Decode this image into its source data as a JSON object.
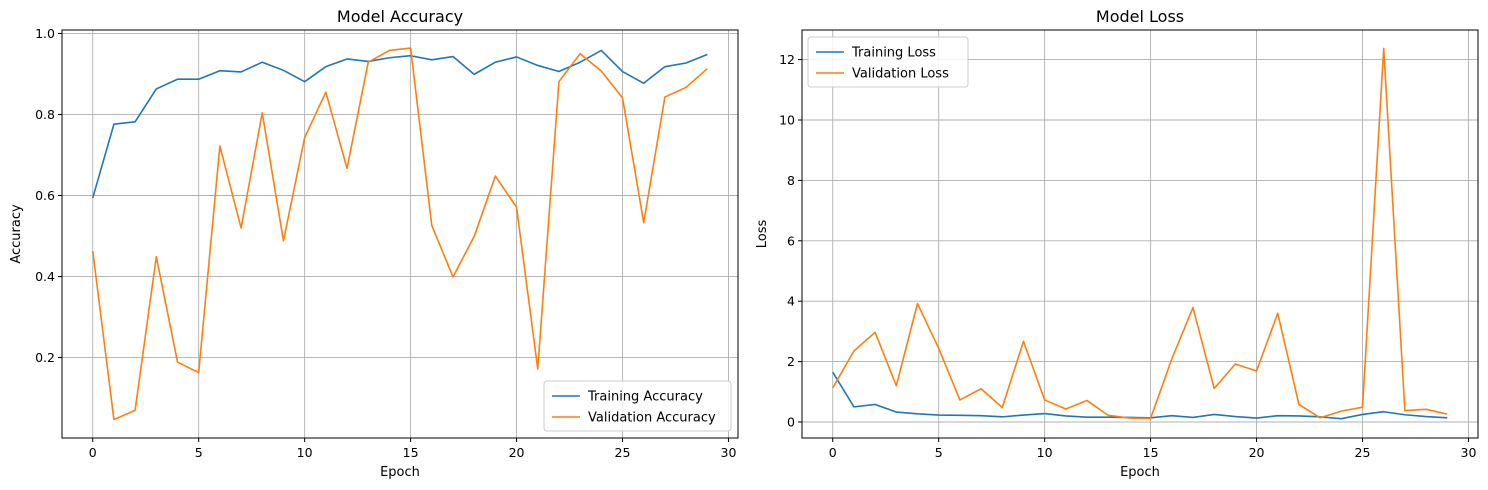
{
  "chart_data": [
    {
      "type": "line",
      "title": "Model Accuracy",
      "xlabel": "Epoch",
      "ylabel": "Accuracy",
      "xlim": [
        -1.45,
        30.45
      ],
      "ylim": [
        0.0015,
        1.0085
      ],
      "xticks": [
        0,
        5,
        10,
        15,
        20,
        25,
        30
      ],
      "yticks": [
        0.2,
        0.4,
        0.6,
        0.8,
        1.0
      ],
      "ytick_decimals": 1,
      "grid": true,
      "legend_position": "lower-right",
      "x": [
        0,
        1,
        2,
        3,
        4,
        5,
        6,
        7,
        8,
        9,
        10,
        11,
        12,
        13,
        14,
        15,
        16,
        17,
        18,
        19,
        20,
        21,
        22,
        23,
        24,
        25,
        26,
        27,
        28,
        29
      ],
      "series": [
        {
          "name": "Training Accuracy",
          "color": "#1f77b4",
          "values": [
            0.594,
            0.776,
            0.782,
            0.863,
            0.887,
            0.887,
            0.908,
            0.905,
            0.929,
            0.909,
            0.881,
            0.918,
            0.937,
            0.931,
            0.94,
            0.945,
            0.935,
            0.943,
            0.899,
            0.929,
            0.942,
            0.921,
            0.906,
            0.929,
            0.958,
            0.906,
            0.877,
            0.918,
            0.927,
            0.948
          ]
        },
        {
          "name": "Validation Accuracy",
          "color": "#ff7f0e",
          "values": [
            0.463,
            0.047,
            0.07,
            0.449,
            0.189,
            0.163,
            0.722,
            0.52,
            0.804,
            0.488,
            0.743,
            0.855,
            0.667,
            0.929,
            0.958,
            0.964,
            0.526,
            0.399,
            0.499,
            0.648,
            0.571,
            0.172,
            0.881,
            0.95,
            0.907,
            0.841,
            0.533,
            0.843,
            0.867,
            0.913
          ]
        }
      ]
    },
    {
      "type": "line",
      "title": "Model Loss",
      "xlabel": "Epoch",
      "ylabel": "Loss",
      "xlim": [
        -1.45,
        30.45
      ],
      "ylim": [
        -0.53,
        12.98
      ],
      "xticks": [
        0,
        5,
        10,
        15,
        20,
        25,
        30
      ],
      "yticks": [
        0,
        2,
        4,
        6,
        8,
        10,
        12
      ],
      "ytick_decimals": 0,
      "grid": true,
      "legend_position": "upper-left",
      "x": [
        0,
        1,
        2,
        3,
        4,
        5,
        6,
        7,
        8,
        9,
        10,
        11,
        12,
        13,
        14,
        15,
        16,
        17,
        18,
        19,
        20,
        21,
        22,
        23,
        24,
        25,
        26,
        27,
        28,
        29
      ],
      "series": [
        {
          "name": "Training Loss",
          "color": "#1f77b4",
          "values": [
            1.65,
            0.5,
            0.58,
            0.33,
            0.27,
            0.23,
            0.22,
            0.21,
            0.17,
            0.23,
            0.28,
            0.2,
            0.16,
            0.16,
            0.15,
            0.14,
            0.21,
            0.15,
            0.25,
            0.18,
            0.13,
            0.21,
            0.2,
            0.17,
            0.11,
            0.25,
            0.34,
            0.24,
            0.18,
            0.14
          ]
        },
        {
          "name": "Validation Loss",
          "color": "#ff7f0e",
          "values": [
            1.13,
            2.35,
            2.97,
            1.2,
            3.92,
            2.44,
            0.73,
            1.1,
            0.48,
            2.67,
            0.73,
            0.43,
            0.71,
            0.22,
            0.13,
            0.12,
            2.09,
            3.79,
            1.11,
            1.92,
            1.69,
            3.6,
            0.58,
            0.14,
            0.36,
            0.49,
            12.37,
            0.38,
            0.42,
            0.26
          ]
        }
      ]
    }
  ]
}
